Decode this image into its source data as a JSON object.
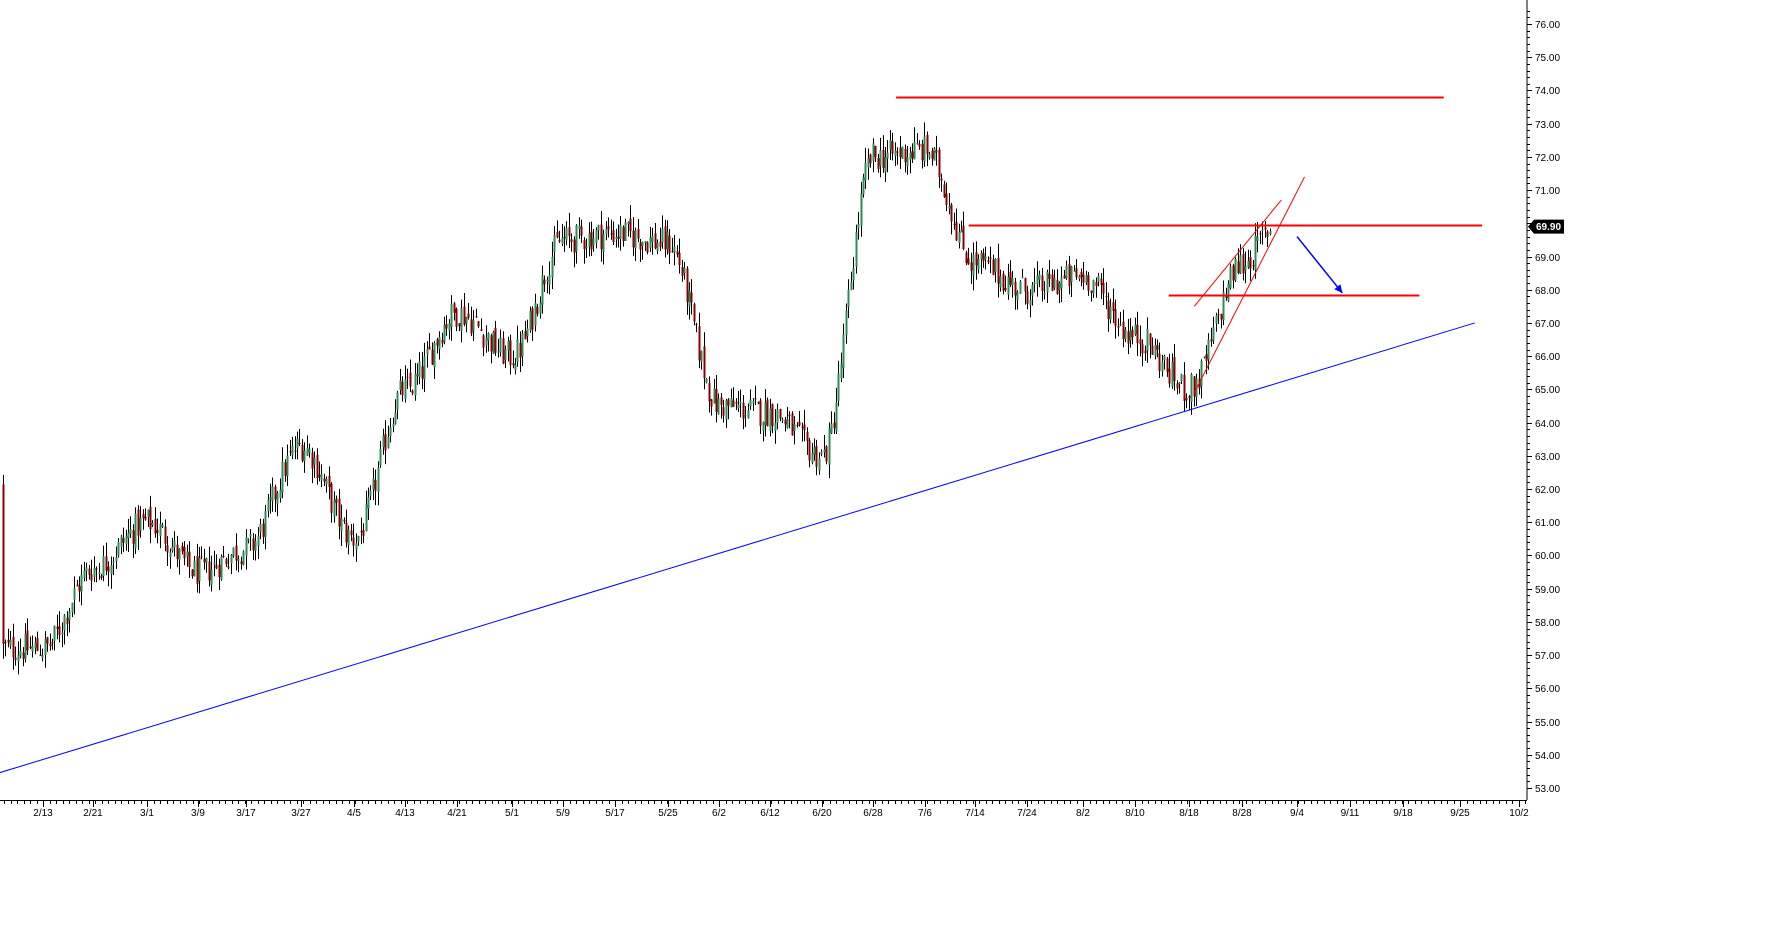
{
  "chart_data": {
    "type": "candlestick",
    "y_axis": {
      "range": [
        52.6,
        76.5
      ],
      "ticks": [
        "53.00",
        "54.00",
        "55.00",
        "56.00",
        "57.00",
        "58.00",
        "59.00",
        "60.00",
        "61.00",
        "62.00",
        "63.00",
        "64.00",
        "65.00",
        "66.00",
        "67.00",
        "68.00",
        "69.00",
        "70.00",
        "71.00",
        "72.00",
        "73.00",
        "74.00",
        "75.00",
        "76.00"
      ],
      "position": "right"
    },
    "x_axis": {
      "labels": [
        "2/13",
        "2/21",
        "3/1",
        "3/9",
        "3/17",
        "3/27",
        "4/5",
        "4/13",
        "4/21",
        "5/1",
        "5/9",
        "5/17",
        "5/25",
        "6/2",
        "6/12",
        "6/20",
        "6/28",
        "7/6",
        "7/14",
        "7/24",
        "8/2",
        "8/10",
        "8/18",
        "8/28",
        "9/4",
        "9/11",
        "9/18",
        "9/25",
        "10/2"
      ]
    },
    "last_price": "69.90",
    "colors": {
      "up_candle": "#2e8b57",
      "down_candle": "#8b0000",
      "wick": "#000000",
      "support_trendline": "#0000ff",
      "resistance_lines": "#ff0000",
      "channel_lines": "#ff0000",
      "forecast_arrow": "#0000ff",
      "last_price_box": "#000000"
    },
    "price_path_anchors": [
      {
        "date": "2/13",
        "close": 57.2
      },
      {
        "date": "2/21",
        "close": 59.6
      },
      {
        "date": "3/1",
        "close": 61.0
      },
      {
        "date": "3/9",
        "close": 59.5
      },
      {
        "date": "3/17",
        "close": 60.2
      },
      {
        "date": "3/27",
        "close": 63.3
      },
      {
        "date": "4/5",
        "close": 60.5
      },
      {
        "date": "4/13",
        "close": 65.0
      },
      {
        "date": "4/21",
        "close": 67.3
      },
      {
        "date": "5/1",
        "close": 66.0
      },
      {
        "date": "5/9",
        "close": 69.5
      },
      {
        "date": "5/17",
        "close": 69.7
      },
      {
        "date": "5/25",
        "close": 69.4
      },
      {
        "date": "6/2",
        "close": 64.5
      },
      {
        "date": "6/12",
        "close": 64.3
      },
      {
        "date": "6/20",
        "close": 63.0
      },
      {
        "date": "6/28",
        "close": 72.0
      },
      {
        "date": "7/6",
        "close": 72.2
      },
      {
        "date": "7/14",
        "close": 68.8
      },
      {
        "date": "7/24",
        "close": 68.0
      },
      {
        "date": "8/2",
        "close": 68.4
      },
      {
        "date": "8/10",
        "close": 66.6
      },
      {
        "date": "8/18",
        "close": 65.0
      },
      {
        "date": "8/28",
        "close": 68.8
      },
      {
        "date": "9/1",
        "close": 69.9
      }
    ],
    "annotations": {
      "support_trendline": {
        "from": {
          "date": "2/5",
          "price": 53.4
        },
        "to": {
          "date": "9/27",
          "price": 67.0
        }
      },
      "resistance_lines": [
        {
          "price": 73.8,
          "from": "7/1",
          "to": "9/23"
        },
        {
          "price": 69.95,
          "from": "7/13",
          "to": "9/28"
        },
        {
          "price": 67.85,
          "from": "8/15",
          "to": "9/20"
        }
      ],
      "channel_lower": {
        "from": {
          "date": "8/19",
          "price": 64.9
        },
        "to": {
          "date": "9/5",
          "price": 71.4
        }
      },
      "channel_upper": {
        "from": {
          "date": "8/19",
          "price": 67.5
        },
        "to": {
          "date": "9/2",
          "price": 70.7
        }
      },
      "forecast_arrow": {
        "from": {
          "date": "9/4",
          "price": 69.6
        },
        "to": {
          "date": "9/10",
          "price": 67.9
        }
      }
    }
  }
}
